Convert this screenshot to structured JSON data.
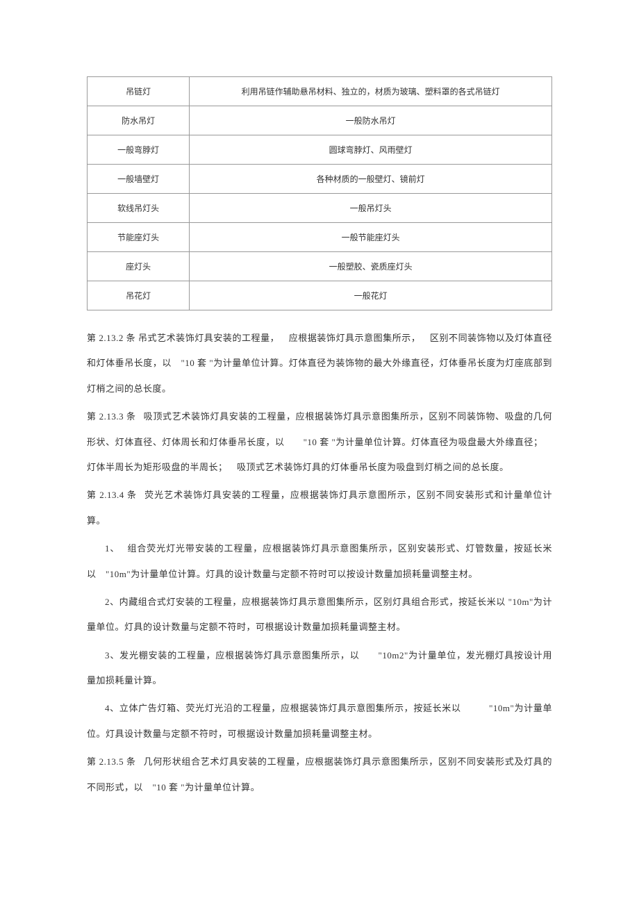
{
  "table": {
    "rows": [
      {
        "c1": "吊链灯",
        "c2": "利用吊链作辅助悬吊材料、独立的，材质为玻璃、塑料罩的各式吊链灯"
      },
      {
        "c1": "防水吊灯",
        "c2": "一般防水吊灯"
      },
      {
        "c1": "一般弯脖灯",
        "c2": "圆球弯脖灯、风雨壁灯"
      },
      {
        "c1": "一般墙壁灯",
        "c2": "各种材质的一般壁灯、镜前灯"
      },
      {
        "c1": "软线吊灯头",
        "c2": "一般吊灯头"
      },
      {
        "c1": "节能座灯头",
        "c2": "一般节能座灯头"
      },
      {
        "c1": "座灯头",
        "c2": "一般塑胶、瓷质座灯头"
      },
      {
        "c1": "吊花灯",
        "c2": "一般花灯"
      }
    ]
  },
  "paragraphs": {
    "p1": "第 2.13.2 条 吊式艺术装饰灯具安装的工程量， 应根据装饰灯具示意图集所示， 区别不同装饰物以及灯体直径和灯体垂吊长度，以 \"10 套 \"为计量单位计算。灯体直径为装饰物的最大外缘直径，灯体垂吊长度为灯座底部到灯梢之间的总长度。",
    "p2": "第 2.13.3 条  吸顶式艺术装饰灯具安装的工程量，应根据装饰灯具示意图集所示，区别不同装饰物、吸盘的几何形状、灯体直径、灯体周长和灯体垂吊长度，以  \"10 套 \"为计量单位计算。灯体直径为吸盘最大外缘直径； 灯体半周长为矩形吸盘的半周长； 吸顶式艺术装饰灯具的灯体垂吊长度为吸盘到灯梢之间的总长度。",
    "p3": "第 2.13.4 条  荧光艺术装饰灯具安装的工程量，应根据装饰灯具示意图所示，区别不同安装形式和计量单位计算。",
    "p4": "1、  组合荧光灯光带安装的工程量，应根据装饰灯具示意图集所示，区别安装形式、灯管数量，按延长米以 \"10m\"为计量单位计算。灯具的设计数量与定额不符时可以按设计数量加损耗量调整主材。",
    "p5": "2、内藏组合式灯安装的工程量，应根据装饰灯具示意图集所示，区别灯具组合形式，按延长米以 \"10m\"为计量单位。灯具的设计数量与定额不符时，可根据设计数量加损耗量调整主材。",
    "p6": "3、发光棚安装的工程量，应根据装饰灯具示意图集所示，以  \"10m2\"为计量单位，发光棚灯具按设计用量加损耗量计算。",
    "p7": "4、立体广告灯箱、荧光灯光沿的工程量，应根据装饰灯具示意图集所示，按延长米以   \"10m\"为计量单位。灯具设计数量与定额不符时，可根据设计数量加损耗量调整主材。",
    "p8": "第 2.13.5 条  几何形状组合艺术灯具安装的工程量，应根据装饰灯具示意图集所示，区别不同安装形式及灯具的不同形式，以 \"10 套 \"为计量单位计算。"
  }
}
